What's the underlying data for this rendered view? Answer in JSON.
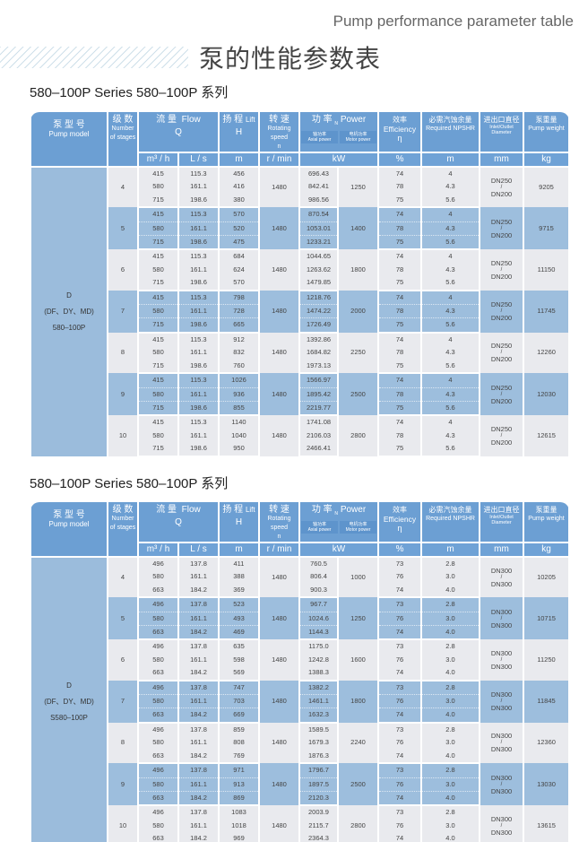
{
  "page": {
    "title_en": "Pump performance parameter table",
    "title_cn": "泵的性能参数表"
  },
  "header": {
    "model_cn": "泵 型 号",
    "model_en": "Pump model",
    "stages_cn": "级 数",
    "stages_en": "Number of stages",
    "flow_cn": "流 量",
    "flow_en": "Flow",
    "flow_sym": "Q",
    "lift_cn": "扬 程",
    "lift_en": "Lift",
    "lift_sym": "H",
    "speed_cn": "转 速",
    "speed_en": "Rotating speed",
    "speed_sym": "n",
    "power_cn": "功 率",
    "power_sym": "N",
    "power_en": "Power",
    "axial_cn": "轴功率",
    "axial_en": "Axial power",
    "motor_cn": "电机功率",
    "motor_en": "Motor power",
    "eff_cn": "效率",
    "eff_en": "Efficiency",
    "eff_sym": "η",
    "npsh_cn": "必需汽蚀余量",
    "npsh_en": "Required NPSHR",
    "dia_cn": "进出口直径",
    "dia_en": "Inlet/Outlet Diameter",
    "weight_cn": "泵重量",
    "weight_en": "Pump weight",
    "units": {
      "q1": "m³ / h",
      "q2": "L / s",
      "h": "m",
      "n": "r / min",
      "p": "kW",
      "eff": "%",
      "npsh": "m",
      "dia": "mm",
      "kg": "kg"
    }
  },
  "tables": [
    {
      "series": "580–100P Series    580–100P 系列",
      "model": [
        "D",
        "(DF、DY、MD)",
        "580–100P"
      ],
      "groups": [
        {
          "stage": "4",
          "n": "1480",
          "motor": "1250",
          "dia_in": "DN250",
          "dia_sep": "/",
          "dia_out": "DN200",
          "weight": "9205",
          "rows": [
            [
              "415",
              "115.3",
              "456",
              "696.43",
              "74",
              "4"
            ],
            [
              "580",
              "161.1",
              "416",
              "842.41",
              "78",
              "4.3"
            ],
            [
              "715",
              "198.6",
              "380",
              "986.56",
              "75",
              "5.6"
            ]
          ]
        },
        {
          "stage": "5",
          "n": "1480",
          "motor": "1400",
          "dia_in": "DN250",
          "dia_sep": "/",
          "dia_out": "DN200",
          "weight": "9715",
          "rows": [
            [
              "415",
              "115.3",
              "570",
              "870.54",
              "74",
              "4"
            ],
            [
              "580",
              "161.1",
              "520",
              "1053.01",
              "78",
              "4.3"
            ],
            [
              "715",
              "198.6",
              "475",
              "1233.21",
              "75",
              "5.6"
            ]
          ]
        },
        {
          "stage": "6",
          "n": "1480",
          "motor": "1800",
          "dia_in": "DN250",
          "dia_sep": "/",
          "dia_out": "DN200",
          "weight": "11150",
          "rows": [
            [
              "415",
              "115.3",
              "684",
              "1044.65",
              "74",
              "4"
            ],
            [
              "580",
              "161.1",
              "624",
              "1263.62",
              "78",
              "4.3"
            ],
            [
              "715",
              "198.6",
              "570",
              "1479.85",
              "75",
              "5.6"
            ]
          ]
        },
        {
          "stage": "7",
          "n": "1480",
          "motor": "2000",
          "dia_in": "DN250",
          "dia_sep": "/",
          "dia_out": "DN200",
          "weight": "11745",
          "rows": [
            [
              "415",
              "115.3",
              "798",
              "1218.76",
              "74",
              "4"
            ],
            [
              "580",
              "161.1",
              "728",
              "1474.22",
              "78",
              "4.3"
            ],
            [
              "715",
              "198.6",
              "665",
              "1726.49",
              "75",
              "5.6"
            ]
          ]
        },
        {
          "stage": "8",
          "n": "1480",
          "motor": "2250",
          "dia_in": "DN250",
          "dia_sep": "/",
          "dia_out": "DN200",
          "weight": "12260",
          "rows": [
            [
              "415",
              "115.3",
              "912",
              "1392.86",
              "74",
              "4"
            ],
            [
              "580",
              "161.1",
              "832",
              "1684.82",
              "78",
              "4.3"
            ],
            [
              "715",
              "198.6",
              "760",
              "1973.13",
              "75",
              "5.6"
            ]
          ]
        },
        {
          "stage": "9",
          "n": "1480",
          "motor": "2500",
          "dia_in": "DN250",
          "dia_sep": "/",
          "dia_out": "DN200",
          "weight": "12030",
          "rows": [
            [
              "415",
              "115.3",
              "1026",
              "1566.97",
              "74",
              "4"
            ],
            [
              "580",
              "161.1",
              "936",
              "1895.42",
              "78",
              "4.3"
            ],
            [
              "715",
              "198.6",
              "855",
              "2219.77",
              "75",
              "5.6"
            ]
          ]
        },
        {
          "stage": "10",
          "n": "1480",
          "motor": "2800",
          "dia_in": "DN250",
          "dia_sep": "/",
          "dia_out": "DN200",
          "weight": "12615",
          "rows": [
            [
              "415",
              "115.3",
              "1140",
              "1741.08",
              "74",
              "4"
            ],
            [
              "580",
              "161.1",
              "1040",
              "2106.03",
              "78",
              "4.3"
            ],
            [
              "715",
              "198.6",
              "950",
              "2466.41",
              "75",
              "5.6"
            ]
          ]
        }
      ]
    },
    {
      "series": "580–100P Series    580–100P 系列",
      "model": [
        "D",
        "(DF、DY、MD)",
        "S580–100P"
      ],
      "groups": [
        {
          "stage": "4",
          "n": "1480",
          "motor": "1000",
          "dia_in": "DN300",
          "dia_sep": "/",
          "dia_out": "DN300",
          "weight": "10205",
          "rows": [
            [
              "496",
              "137.8",
              "411",
              "760.5",
              "73",
              "2.8"
            ],
            [
              "580",
              "161.1",
              "388",
              "806.4",
              "76",
              "3.0"
            ],
            [
              "663",
              "184.2",
              "369",
              "900.3",
              "74",
              "4.0"
            ]
          ]
        },
        {
          "stage": "5",
          "n": "1480",
          "motor": "1250",
          "dia_in": "DN300",
          "dia_sep": "/",
          "dia_out": "DN300",
          "weight": "10715",
          "rows": [
            [
              "496",
              "137.8",
              "523",
              "967.7",
              "73",
              "2.8"
            ],
            [
              "580",
              "161.1",
              "493",
              "1024.6",
              "76",
              "3.0"
            ],
            [
              "663",
              "184.2",
              "469",
              "1144.3",
              "74",
              "4.0"
            ]
          ]
        },
        {
          "stage": "6",
          "n": "1480",
          "motor": "1600",
          "dia_in": "DN300",
          "dia_sep": "/",
          "dia_out": "DN300",
          "weight": "11250",
          "rows": [
            [
              "496",
              "137.8",
              "635",
              "1175.0",
              "73",
              "2.8"
            ],
            [
              "580",
              "161.1",
              "598",
              "1242.8",
              "76",
              "3.0"
            ],
            [
              "663",
              "184.2",
              "569",
              "1388.3",
              "74",
              "4.0"
            ]
          ]
        },
        {
          "stage": "7",
          "n": "1480",
          "motor": "1800",
          "dia_in": "DN300",
          "dia_sep": "/",
          "dia_out": "DN300",
          "weight": "11845",
          "rows": [
            [
              "496",
              "137.8",
              "747",
              "1382.2",
              "73",
              "2.8"
            ],
            [
              "580",
              "161.1",
              "703",
              "1461.1",
              "76",
              "3.0"
            ],
            [
              "663",
              "184.2",
              "669",
              "1632.3",
              "74",
              "4.0"
            ]
          ]
        },
        {
          "stage": "8",
          "n": "1480",
          "motor": "2240",
          "dia_in": "DN300",
          "dia_sep": "/",
          "dia_out": "DN300",
          "weight": "12360",
          "rows": [
            [
              "496",
              "137.8",
              "859",
              "1589.5",
              "73",
              "2.8"
            ],
            [
              "580",
              "161.1",
              "808",
              "1679.3",
              "76",
              "3.0"
            ],
            [
              "663",
              "184.2",
              "769",
              "1876.3",
              "74",
              "4.0"
            ]
          ]
        },
        {
          "stage": "9",
          "n": "1480",
          "motor": "2500",
          "dia_in": "DN300",
          "dia_sep": "/",
          "dia_out": "DN300",
          "weight": "13030",
          "rows": [
            [
              "496",
              "137.8",
              "971",
              "1796.7",
              "73",
              "2.8"
            ],
            [
              "580",
              "161.1",
              "913",
              "1897.5",
              "76",
              "3.0"
            ],
            [
              "663",
              "184.2",
              "869",
              "2120.3",
              "74",
              "4.0"
            ]
          ]
        },
        {
          "stage": "10",
          "n": "1480",
          "motor": "2800",
          "dia_in": "DN300",
          "dia_sep": "/",
          "dia_out": "DN300",
          "weight": "13615",
          "rows": [
            [
              "496",
              "137.8",
              "1083",
              "2003.9",
              "73",
              "2.8"
            ],
            [
              "580",
              "161.1",
              "1018",
              "2115.7",
              "76",
              "3.0"
            ],
            [
              "663",
              "184.2",
              "969",
              "2364.3",
              "74",
              "4.0"
            ]
          ]
        }
      ]
    }
  ]
}
